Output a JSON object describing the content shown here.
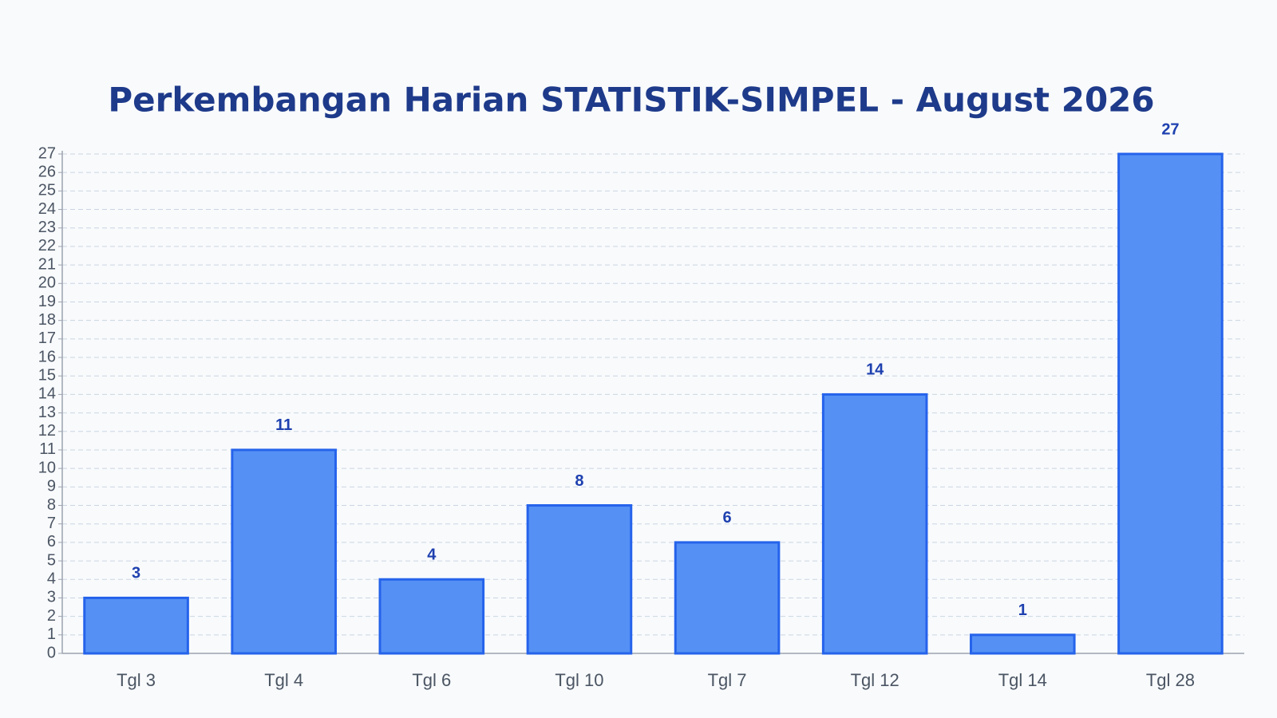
{
  "chart_data": {
    "type": "bar",
    "title": "Perkembangan Harian STATISTIK-SIMPEL - August 2026",
    "categories": [
      "Tgl 3",
      "Tgl 4",
      "Tgl 6",
      "Tgl 10",
      "Tgl 7",
      "Tgl 12",
      "Tgl 14",
      "Tgl 28"
    ],
    "values": [
      3,
      11,
      4,
      8,
      6,
      14,
      1,
      27
    ],
    "color": "#5591f5",
    "edge_color": "#2563eb",
    "ylim": [
      0,
      27
    ],
    "yticks": [
      0,
      1,
      2,
      3,
      4,
      5,
      6,
      7,
      8,
      9,
      10,
      11,
      12,
      13,
      14,
      15,
      16,
      17,
      18,
      19,
      20,
      21,
      22,
      23,
      24,
      25,
      26,
      27
    ],
    "grid": true
  }
}
